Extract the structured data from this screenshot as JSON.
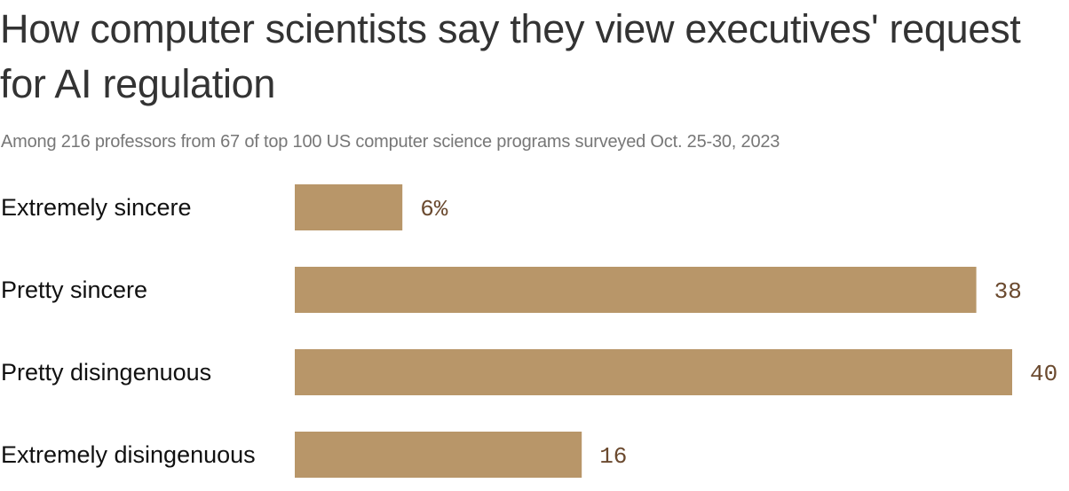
{
  "title": "How computer scientists say they view executives' request for AI regulation",
  "subtitle": "Among 216 professors from 67 of top 100 US computer science programs surveyed Oct. 25-30, 2023",
  "colors": {
    "bar": "#b89669",
    "value_label": "#6b4a2f",
    "title": "#333333",
    "subtitle": "#777777"
  },
  "chart_data": {
    "type": "bar",
    "orientation": "horizontal",
    "title": "How computer scientists say they view executives' request for AI regulation",
    "subtitle": "Among 216 professors from 67 of top 100 US computer science programs surveyed Oct. 25-30, 2023",
    "categories": [
      "Extremely sincere",
      "Pretty sincere",
      "Pretty disingenuous",
      "Extremely disingenuous"
    ],
    "values": [
      6,
      38,
      40,
      16
    ],
    "value_labels": [
      "6%",
      "38",
      "40",
      "16"
    ],
    "unit": "%",
    "xlim": [
      0,
      40
    ],
    "grid": false,
    "xlabel": "",
    "ylabel": ""
  }
}
